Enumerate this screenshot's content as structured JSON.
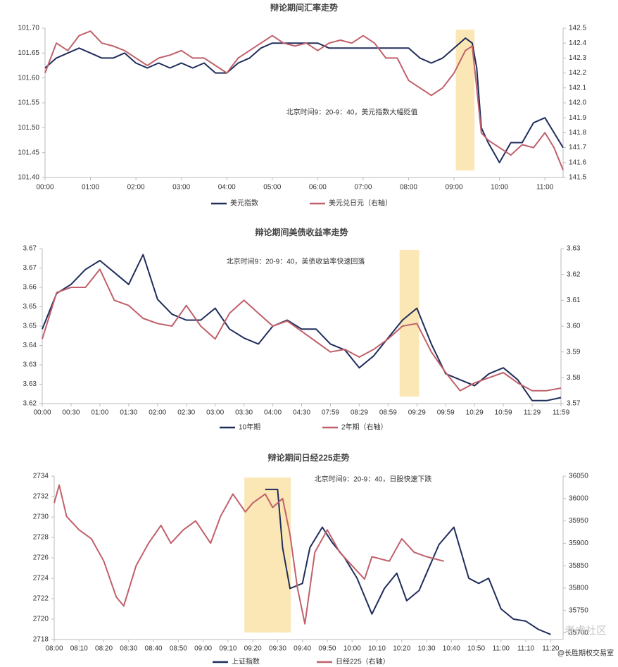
{
  "chart_data": [
    {
      "type": "line",
      "title": "辩论期间汇率走势",
      "annotation": "北京时间9：20-9：40，美元指数大幅贬值",
      "x": [
        0,
        0.25,
        0.5,
        0.75,
        1,
        1.25,
        1.5,
        1.75,
        2,
        2.25,
        2.5,
        2.75,
        3,
        3.25,
        3.5,
        3.75,
        4,
        4.25,
        4.5,
        4.75,
        5,
        5.25,
        5.5,
        5.75,
        6,
        6.25,
        6.5,
        6.75,
        7,
        7.25,
        7.5,
        7.75,
        8,
        8.25,
        8.5,
        8.75,
        9,
        9.25,
        9.4,
        9.5,
        9.6,
        9.75,
        10,
        10.25,
        10.5,
        10.75,
        11,
        11.2,
        11.4
      ],
      "xlim": [
        0,
        11.4
      ],
      "xticks": [
        {
          "value": 0,
          "label": "00:00"
        },
        {
          "value": 1,
          "label": "01:00"
        },
        {
          "value": 2,
          "label": "02:00"
        },
        {
          "value": 3,
          "label": "03:00"
        },
        {
          "value": 4,
          "label": "04:00"
        },
        {
          "value": 5,
          "label": "05:00"
        },
        {
          "value": 6,
          "label": "06:00"
        },
        {
          "value": 7,
          "label": "07:00"
        },
        {
          "value": 8,
          "label": "08:00"
        },
        {
          "value": 9,
          "label": "09:00"
        },
        {
          "value": 10,
          "label": "10:00"
        },
        {
          "value": 11,
          "label": "11:00"
        }
      ],
      "ylim": [
        101.4,
        101.7
      ],
      "yticks": [
        {
          "value": 101.4,
          "label": "101.40"
        },
        101.45,
        {
          "value": 101.5,
          "label": "101.50"
        },
        101.55,
        {
          "value": 101.6,
          "label": "101.60"
        },
        101.65,
        {
          "value": 101.7,
          "label": "101.70"
        }
      ],
      "y2lim": [
        141.5,
        142.5
      ],
      "y2ticks": [
        141.5,
        141.6,
        141.7,
        141.8,
        141.9,
        {
          "value": 142,
          "label": "142.0"
        },
        142.1,
        142.2,
        142.3,
        142.4,
        142.5
      ],
      "highlight": [
        9.04,
        9.45
      ],
      "series": [
        {
          "name": "美元指数",
          "color": "#1f2d5c",
          "values": [
            101.62,
            101.64,
            101.65,
            101.66,
            101.65,
            101.64,
            101.64,
            101.65,
            101.63,
            101.62,
            101.63,
            101.62,
            101.63,
            101.62,
            101.63,
            101.61,
            101.61,
            101.63,
            101.64,
            101.66,
            101.67,
            101.67,
            101.67,
            101.67,
            101.67,
            101.66,
            101.66,
            101.66,
            101.66,
            101.66,
            101.66,
            101.66,
            101.66,
            101.64,
            101.63,
            101.64,
            101.66,
            101.68,
            101.67,
            101.62,
            101.5,
            101.47,
            101.43,
            101.47,
            101.47,
            101.51,
            101.52,
            101.49,
            101.46
          ]
        },
        {
          "name": "美元兑日元（右轴）",
          "color": "#c0606a",
          "axis": "y2",
          "values": [
            142.2,
            142.4,
            142.35,
            142.45,
            142.48,
            142.4,
            142.38,
            142.35,
            142.3,
            142.25,
            142.3,
            142.32,
            142.35,
            142.3,
            142.3,
            142.25,
            142.2,
            142.3,
            142.35,
            142.4,
            142.45,
            142.4,
            142.38,
            142.4,
            142.35,
            142.4,
            142.42,
            142.4,
            142.45,
            142.4,
            142.3,
            142.3,
            142.15,
            142.1,
            142.05,
            142.1,
            142.2,
            142.35,
            142.38,
            142.1,
            141.8,
            141.75,
            141.7,
            141.65,
            141.72,
            141.7,
            141.8,
            141.7,
            141.55
          ]
        }
      ]
    },
    {
      "type": "line",
      "title": "辩论期间美债收益率走势",
      "annotation": "北京时间9：20-9：40，美债收益率快速回落",
      "x": [
        0,
        0.5,
        1,
        1.5,
        2,
        2.5,
        3,
        3.5,
        4,
        4.5,
        5,
        5.5,
        6,
        6.5,
        7,
        7.5,
        8,
        8.5,
        9,
        9.5,
        10,
        10.5,
        11,
        11.5,
        12,
        12.5,
        13,
        13.5,
        14,
        14.5,
        15,
        15.5,
        16,
        16.5,
        17,
        17.5,
        18
      ],
      "xlim": [
        0,
        18
      ],
      "xticks": [
        {
          "value": 0,
          "label": "00:00"
        },
        {
          "value": 1,
          "label": "00:30"
        },
        {
          "value": 2,
          "label": "01:00"
        },
        {
          "value": 3,
          "label": "01:30"
        },
        {
          "value": 4,
          "label": "02:00"
        },
        {
          "value": 5,
          "label": "02:30"
        },
        {
          "value": 6,
          "label": "03:00"
        },
        {
          "value": 7,
          "label": "03:30"
        },
        {
          "value": 8,
          "label": "04:00"
        },
        {
          "value": 9,
          "label": "04:30"
        },
        {
          "value": 10,
          "label": "07:59"
        },
        {
          "value": 11,
          "label": "08:29"
        },
        {
          "value": 12,
          "label": "08:59"
        },
        {
          "value": 13,
          "label": "09:29"
        },
        {
          "value": 14,
          "label": "09:59"
        },
        {
          "value": 15,
          "label": "10:29"
        },
        {
          "value": 16,
          "label": "10:59"
        },
        {
          "value": 17,
          "label": "11:29"
        },
        {
          "value": 18,
          "label": "11:59"
        }
      ],
      "ylim": [
        3.62,
        3.672
      ],
      "yticks": [
        3.62,
        {
          "value": 3.6265,
          "label": "3.63"
        },
        {
          "value": 3.633,
          "label": "3.63"
        },
        {
          "value": 3.6395,
          "label": "3.64"
        },
        {
          "value": 3.646,
          "label": "3.65"
        },
        {
          "value": 3.6525,
          "label": "3.65"
        },
        {
          "value": 3.659,
          "label": "3.66"
        },
        {
          "value": 3.6655,
          "label": "3.67"
        },
        {
          "value": 3.672,
          "label": "3.67"
        }
      ],
      "y2lim": [
        3.57,
        3.63
      ],
      "y2ticks": [
        3.57,
        3.58,
        3.59,
        {
          "value": 3.6,
          "label": "3.60"
        },
        3.61,
        3.62,
        3.63
      ],
      "highlight": [
        12.4,
        13.08
      ],
      "series": [
        {
          "name": "10年期",
          "color": "#1f2d5c",
          "values": [
            3.645,
            3.657,
            3.66,
            3.665,
            3.668,
            3.664,
            3.66,
            3.67,
            3.655,
            3.65,
            3.648,
            3.648,
            3.652,
            3.645,
            3.642,
            3.64,
            3.646,
            3.648,
            3.645,
            3.645,
            3.64,
            3.638,
            3.632,
            3.636,
            3.642,
            3.648,
            3.652,
            3.64,
            3.63,
            3.628,
            3.626,
            3.63,
            3.632,
            3.628,
            3.621,
            3.621,
            3.622
          ]
        },
        {
          "name": "2年期（右轴）",
          "color": "#c0606a",
          "axis": "y2",
          "values": [
            3.595,
            3.613,
            3.615,
            3.615,
            3.622,
            3.61,
            3.608,
            3.603,
            3.601,
            3.6,
            3.608,
            3.6,
            3.595,
            3.605,
            3.61,
            3.605,
            3.6,
            3.602,
            3.598,
            3.594,
            3.59,
            3.591,
            3.588,
            3.591,
            3.595,
            3.6,
            3.601,
            3.59,
            3.582,
            3.575,
            3.578,
            3.58,
            3.582,
            3.578,
            3.575,
            3.575,
            3.576
          ]
        }
      ]
    },
    {
      "type": "line",
      "title": "辩论期间日经225走势",
      "annotation": "北京时间9：20-9：40，日股快速下跌",
      "xlim": [
        480,
        685
      ],
      "xticks": [
        {
          "value": 480,
          "label": "08:00"
        },
        {
          "value": 490,
          "label": "08:10"
        },
        {
          "value": 500,
          "label": "08:20"
        },
        {
          "value": 510,
          "label": "08:30"
        },
        {
          "value": 520,
          "label": "08:40"
        },
        {
          "value": 530,
          "label": "08:50"
        },
        {
          "value": 540,
          "label": "09:00"
        },
        {
          "value": 550,
          "label": "09:10"
        },
        {
          "value": 560,
          "label": "09:20"
        },
        {
          "value": 570,
          "label": "09:30"
        },
        {
          "value": 580,
          "label": "09:40"
        },
        {
          "value": 590,
          "label": "09:50"
        },
        {
          "value": 600,
          "label": "10:00"
        },
        {
          "value": 610,
          "label": "10:10"
        },
        {
          "value": 620,
          "label": "10:20"
        },
        {
          "value": 630,
          "label": "10:30"
        },
        {
          "value": 640,
          "label": "10:40"
        },
        {
          "value": 650,
          "label": "10:50"
        },
        {
          "value": 660,
          "label": "11:00"
        },
        {
          "value": 670,
          "label": "11:10"
        },
        {
          "value": 680,
          "label": "11:20"
        }
      ],
      "ylim": [
        2718,
        2734
      ],
      "yticks": [
        2718,
        2720,
        2722,
        2724,
        2726,
        2728,
        2730,
        2732,
        2734
      ],
      "y2lim": [
        35685,
        36050
      ],
      "y2ticks": [
        35700,
        35750,
        35800,
        35850,
        35900,
        35950,
        36000,
        36050
      ],
      "highlight": [
        556.6,
        575.3
      ],
      "watermark": [
        "老虎社区",
        "@长胜期权交易室"
      ],
      "series": [
        {
          "name": "上证指数",
          "color": "#1f2d5c",
          "x": [
            565,
            570,
            572,
            575,
            580,
            583,
            588,
            592,
            597,
            602,
            608,
            613,
            618,
            622,
            627,
            630,
            635,
            641,
            647,
            651,
            655,
            660,
            665,
            670,
            675,
            680
          ],
          "values": [
            2732.7,
            2732.7,
            2727,
            2723,
            2723.5,
            2727,
            2729,
            2727.5,
            2726,
            2724,
            2720.5,
            2723,
            2724.5,
            2721.8,
            2722.8,
            2724.5,
            2727.3,
            2729,
            2724,
            2723.5,
            2724,
            2721,
            2720,
            2719.8,
            2719,
            2718.5
          ]
        },
        {
          "name": "日经225（右轴）",
          "color": "#c0606a",
          "axis": "y2",
          "x": [
            480,
            482,
            485,
            490,
            495,
            500,
            505,
            508,
            513,
            518,
            523,
            527,
            532,
            537,
            543,
            547,
            552,
            557,
            560,
            565,
            568,
            572,
            575,
            578,
            581,
            585,
            590,
            595,
            600,
            605,
            608,
            615,
            620,
            625,
            630,
            637
          ],
          "values": [
            35990,
            36030,
            35960,
            35930,
            35910,
            35860,
            35780,
            35760,
            35850,
            35900,
            35940,
            35900,
            35930,
            35950,
            35900,
            35960,
            36010,
            35970,
            35990,
            36010,
            35980,
            36000,
            35920,
            35800,
            35720,
            35880,
            35930,
            35880,
            35850,
            35820,
            35870,
            35860,
            35910,
            35880,
            35870,
            35860
          ]
        }
      ]
    }
  ]
}
